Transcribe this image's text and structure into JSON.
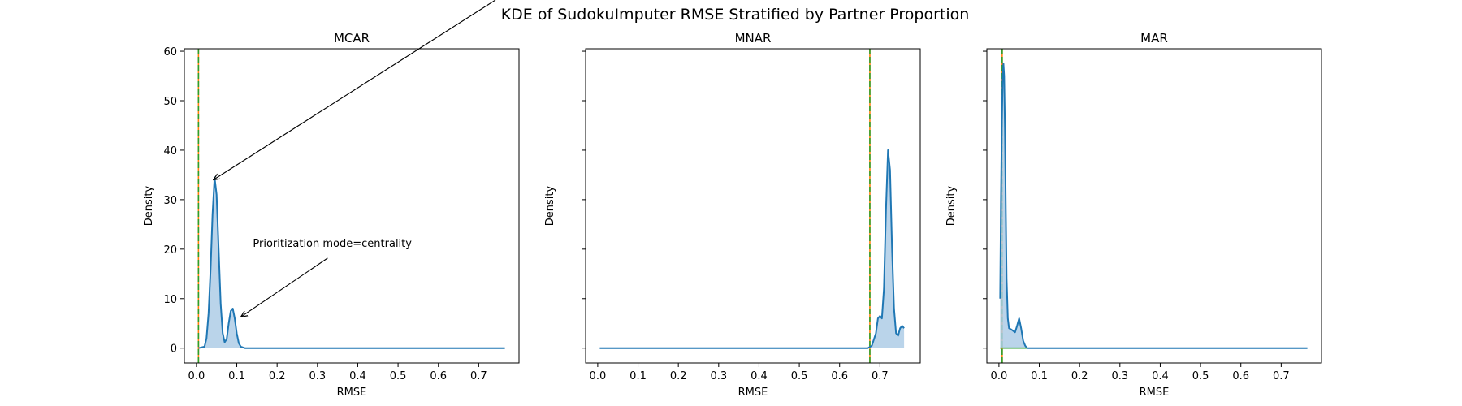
{
  "figure": {
    "suptitle": "KDE of SudokuImputer RMSE Stratified by Partner Proportion"
  },
  "chart_data": [
    {
      "type": "area",
      "title": "MCAR",
      "xlabel": "RMSE",
      "ylabel": "Density",
      "xlim": [
        -0.03,
        0.8
      ],
      "ylim": [
        -3,
        60.5
      ],
      "xticks": [
        "0.0",
        "0.1",
        "0.2",
        "0.3",
        "0.4",
        "0.5",
        "0.6",
        "0.7"
      ],
      "yticks": [
        "0",
        "10",
        "20",
        "30",
        "40",
        "50",
        "60"
      ],
      "show_y_tick_labels": true,
      "series": [
        {
          "x": [
            0.005,
            0.02,
            0.025,
            0.03,
            0.035,
            0.04,
            0.045,
            0.05,
            0.055,
            0.06,
            0.065,
            0.07,
            0.075,
            0.08,
            0.085,
            0.09,
            0.095,
            0.1,
            0.105,
            0.11,
            0.12,
            0.15,
            0.3,
            0.5,
            0.7,
            0.765
          ],
          "y": [
            0,
            0.3,
            2,
            7,
            16,
            27,
            34.5,
            31,
            20,
            9,
            3,
            1.2,
            1.8,
            5,
            7.5,
            8,
            6,
            3,
            1,
            0.3,
            0,
            0,
            0,
            0,
            0,
            0
          ]
        }
      ],
      "vlines": [
        {
          "x": 0.005,
          "color": "#ff7f0e"
        },
        {
          "x": 0.005,
          "color": "#2ca02c"
        }
      ],
      "annotations": [
        {
          "text": "Prioritization mode=centrality",
          "x": 0.14,
          "y": 19.5,
          "arrow_to": [
            0.11,
            6.3
          ]
        },
        {
          "text": "",
          "arrow_from_figure_top": true,
          "arrow_to": [
            0.042,
            34
          ]
        }
      ]
    },
    {
      "type": "area",
      "title": "MNAR",
      "xlabel": "RMSE",
      "ylabel": "Density",
      "xlim": [
        -0.03,
        0.8
      ],
      "ylim": [
        -3,
        60.5
      ],
      "xticks": [
        "0.0",
        "0.1",
        "0.2",
        "0.3",
        "0.4",
        "0.5",
        "0.6",
        "0.7"
      ],
      "yticks": [
        "0",
        "10",
        "20",
        "30",
        "40",
        "50",
        "60"
      ],
      "show_y_tick_labels": false,
      "series": [
        {
          "x": [
            0.005,
            0.3,
            0.6,
            0.67,
            0.68,
            0.69,
            0.695,
            0.7,
            0.705,
            0.71,
            0.715,
            0.72,
            0.725,
            0.73,
            0.735,
            0.74,
            0.745,
            0.75,
            0.755,
            0.76
          ],
          "y": [
            0,
            0,
            0,
            0,
            0.5,
            3,
            6,
            6.5,
            6,
            12,
            28,
            40,
            36,
            20,
            8,
            3,
            2.5,
            4,
            4.5,
            4
          ]
        }
      ],
      "vlines": [
        {
          "x": 0.675,
          "color": "#ff7f0e"
        },
        {
          "x": 0.675,
          "color": "#2ca02c"
        }
      ],
      "annotations": []
    },
    {
      "type": "area",
      "title": "MAR",
      "xlabel": "RMSE",
      "ylabel": "Density",
      "xlim": [
        -0.03,
        0.8
      ],
      "ylim": [
        -3,
        60.5
      ],
      "xticks": [
        "0.0",
        "0.1",
        "0.2",
        "0.3",
        "0.4",
        "0.5",
        "0.6",
        "0.7"
      ],
      "yticks": [
        "0",
        "10",
        "20",
        "30",
        "40",
        "50",
        "60"
      ],
      "show_y_tick_labels": false,
      "series": [
        {
          "x": [
            0.003,
            0.005,
            0.007,
            0.009,
            0.011,
            0.013,
            0.015,
            0.017,
            0.019,
            0.022,
            0.025,
            0.03,
            0.035,
            0.04,
            0.045,
            0.05,
            0.055,
            0.06,
            0.065,
            0.07,
            0.1,
            0.3,
            0.5,
            0.7,
            0.765
          ],
          "y": [
            10,
            30,
            45,
            54,
            57.5,
            55,
            44,
            28,
            14,
            6,
            4,
            3.8,
            3.5,
            3.2,
            4.5,
            6,
            4,
            1.5,
            0.5,
            0,
            0,
            0,
            0,
            0,
            0
          ]
        }
      ],
      "vlines": [
        {
          "x": 0.008,
          "color": "#ff7f0e"
        },
        {
          "x": 0.008,
          "color": "#2ca02c"
        }
      ],
      "hline": {
        "y": 0,
        "x_from": 0.003,
        "x_to": 0.07,
        "color": "#2ca02c"
      },
      "annotations": []
    }
  ],
  "colors": {
    "line": "#1f77b4",
    "fill": "#aecde6",
    "axis": "#000000"
  }
}
